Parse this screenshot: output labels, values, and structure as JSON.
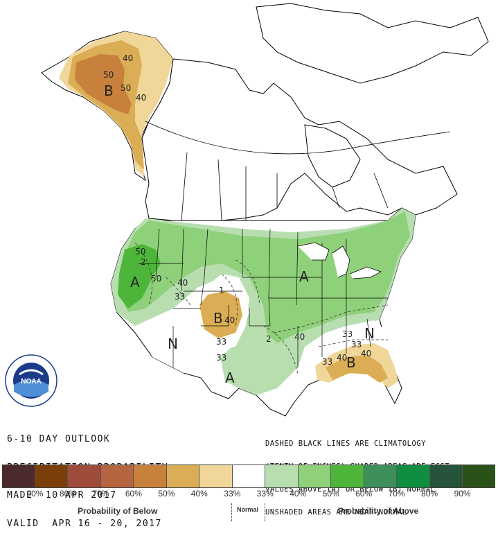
{
  "outlook": {
    "line1": "6-10 DAY OUTLOOK",
    "line2": "PRECIPITATION PROBABILITY",
    "line3": "MADE  10 APR 2017",
    "line4": "VALID  APR 16 - 20, 2017"
  },
  "notes": {
    "line1": "DASHED BLACK LINES ARE CLIMATOLOGY",
    "line2": "(TENTH OF INCHES) SHADED AREAS ARE FCST",
    "line3": "VALUES ABOVE (A) OR BELOW (B) NORMAL",
    "line4": "UNSHADED AREAS ARE NEAR-NORMAL"
  },
  "logo": {
    "text": "NOAA",
    "ring_text": "NATIONAL OCEANIC AND ATMOSPHERIC ADMINISTRATION · U.S. DEPARTMENT OF COMMERCE"
  },
  "legend": {
    "colors": [
      "#4a2a2a",
      "#7a3e0a",
      "#a04c3a",
      "#b5653f",
      "#c8813c",
      "#dbad54",
      "#f0d699",
      "#ffffff",
      "#b8deb0",
      "#8fd07a",
      "#4db53a",
      "#3e8f5c",
      "#0e8e3e",
      "#26533a",
      "#2a5218"
    ],
    "ticks": [
      "90%",
      "80%",
      "70%",
      "60%",
      "50%",
      "40%",
      "33%",
      "33%",
      "40%",
      "50%",
      "60%",
      "70%",
      "80%",
      "90%"
    ],
    "below_label": "Probability of Below",
    "normal_label": "Normal",
    "above_label": "Probability of Above"
  },
  "map_labels": {
    "alaska_b": "B",
    "alaska_50a": "50",
    "alaska_50b": "50",
    "alaska_40a": "40",
    "alaska_40b": "40",
    "west_50": "50",
    "west_2": "2",
    "west_a": "A",
    "west_50b": "50",
    "west_40": "40",
    "west_33": "33",
    "rockies_1": "1",
    "rockies_b": "B",
    "rockies_40": "40",
    "rockies_33a": "33",
    "rockies_33b": "33",
    "sw_n": "N",
    "tx_a": "A",
    "central_a": "A",
    "central_2": "2",
    "central_40": "40",
    "se_33a": "33",
    "se_33b": "33",
    "se_n": "N",
    "se_33c": "33",
    "se_40a": "40",
    "se_b": "B",
    "se_40b": "40"
  }
}
